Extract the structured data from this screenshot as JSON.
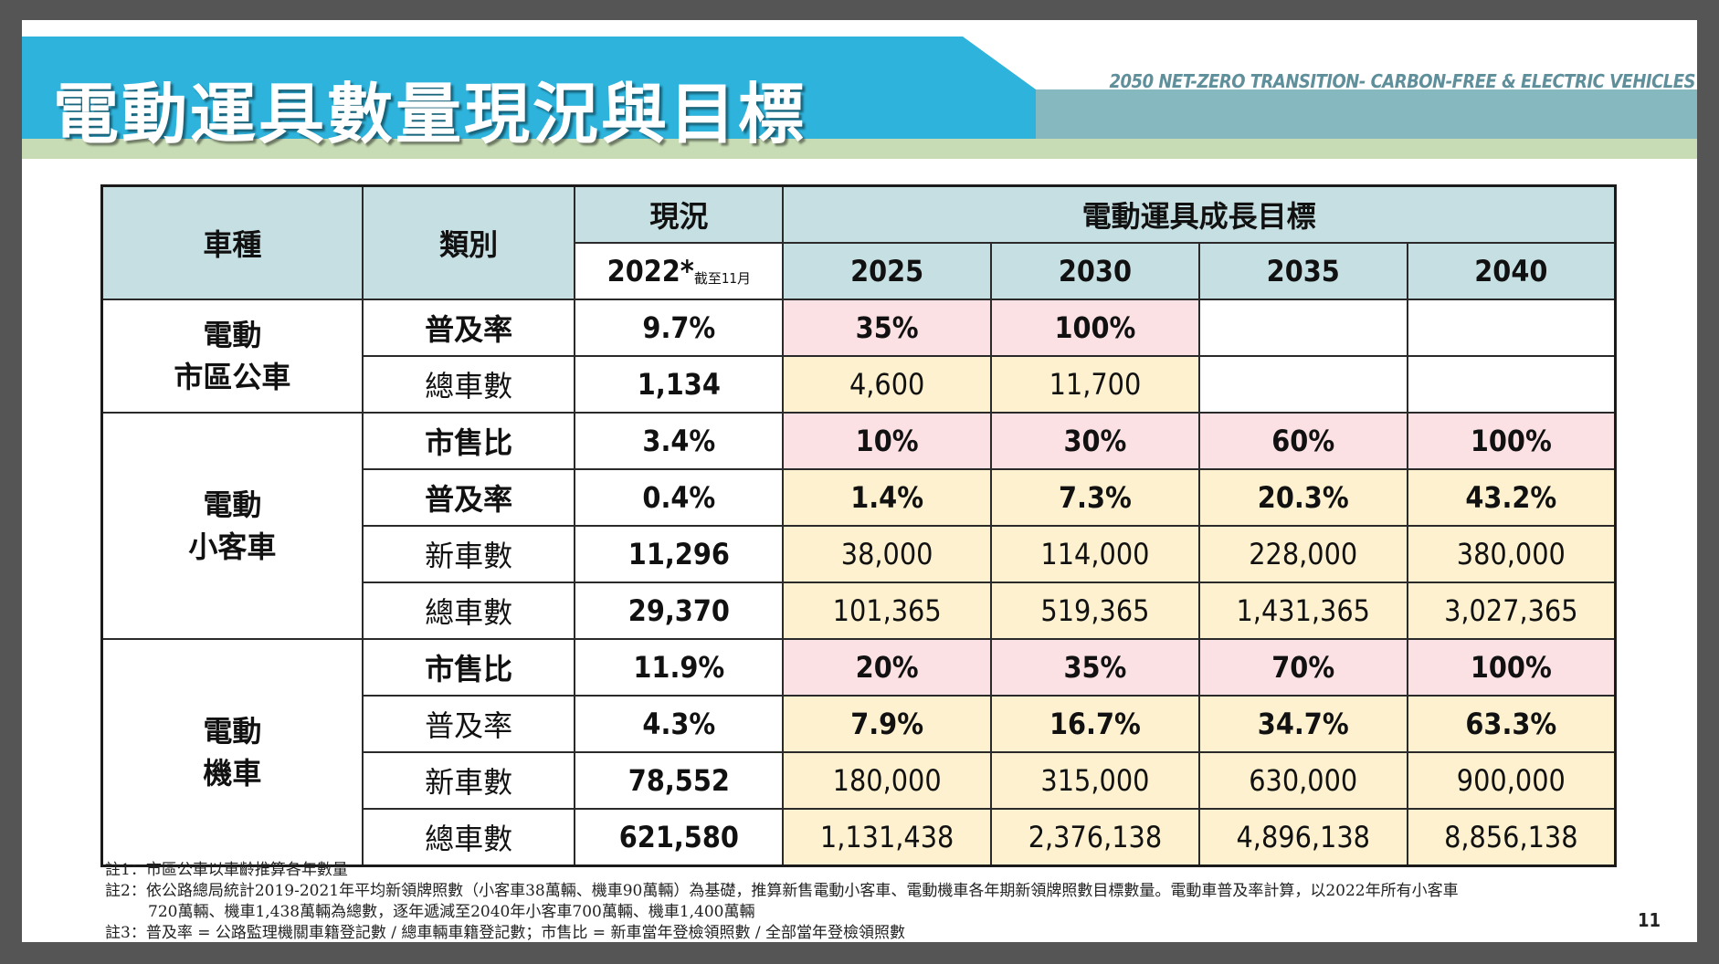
{
  "header": {
    "title": "電動運具數量現況與目標",
    "tagline": "2050 NET-ZERO TRANSITION- CARBON-FREE & ELECTRIC VEHICLES"
  },
  "table": {
    "col_vehicle": "車種",
    "col_category": "類別",
    "col_current": "現況",
    "current_year": "2022*",
    "current_year_note": "截至11月",
    "col_targets": "電動運具成長目標",
    "years": [
      "2025",
      "2030",
      "2035",
      "2040"
    ],
    "groups": [
      {
        "name_line1": "電動",
        "name_line2": "市區公車",
        "rows": [
          {
            "category": "普及率",
            "current": "9.7%",
            "targets": [
              "35%",
              "100%",
              "",
              ""
            ]
          },
          {
            "category": "總車數",
            "current": "1,134",
            "targets": [
              "4,600",
              "11,700",
              "",
              ""
            ]
          }
        ]
      },
      {
        "name_line1": "電動",
        "name_line2": "小客車",
        "rows": [
          {
            "category": "市售比",
            "current": "3.4%",
            "targets": [
              "10%",
              "30%",
              "60%",
              "100%"
            ]
          },
          {
            "category": "普及率",
            "current": "0.4%",
            "targets": [
              "1.4%",
              "7.3%",
              "20.3%",
              "43.2%"
            ]
          },
          {
            "category": "新車數",
            "current": "11,296",
            "targets": [
              "38,000",
              "114,000",
              "228,000",
              "380,000"
            ]
          },
          {
            "category": "總車數",
            "current": "29,370",
            "targets": [
              "101,365",
              "519,365",
              "1,431,365",
              "3,027,365"
            ]
          }
        ]
      },
      {
        "name_line1": "電動",
        "name_line2": "機車",
        "rows": [
          {
            "category": "市售比",
            "current": "11.9%",
            "targets": [
              "20%",
              "35%",
              "70%",
              "100%"
            ]
          },
          {
            "category": "普及率",
            "current": "4.3%",
            "targets": [
              "7.9%",
              "16.7%",
              "34.7%",
              "63.3%"
            ]
          },
          {
            "category": "新車數",
            "current": "78,552",
            "targets": [
              "180,000",
              "315,000",
              "630,000",
              "900,000"
            ]
          },
          {
            "category": "總車數",
            "current": "621,580",
            "targets": [
              "1,131,438",
              "2,376,138",
              "4,896,138",
              "8,856,138"
            ]
          }
        ]
      }
    ]
  },
  "notes": [
    "註1：市區公車以車齡推算各年數量",
    "註2：依公路總局統計2019-2021年平均新領牌照數（小客車38萬輛、機車90萬輛）為基礎，推算新售電動小客車、電動機車各年期新領牌照數目標數量。電動車普及率計算，以2022年所有小客車",
    "720萬輛、機車1,438萬輛為總數，逐年遞減至2040年小客車700萬輛、機車1,400萬輛",
    "註3：普及率 = 公路監理機關車籍登記數 / 總車輛車籍登記數；市售比 = 新車當年登檢領照數 / 全部當年登檢領照數"
  ],
  "page_number": "11",
  "colors": {
    "banner_blue": "#2db3dc",
    "banner_teal": "#86b8c0",
    "banner_green": "#c7dcb4",
    "header_cell": "#c6dfe2",
    "pink_cell": "#fbe1e3",
    "pink_text": "#e02a4f",
    "yellow_cell": "#fdf1cf"
  }
}
